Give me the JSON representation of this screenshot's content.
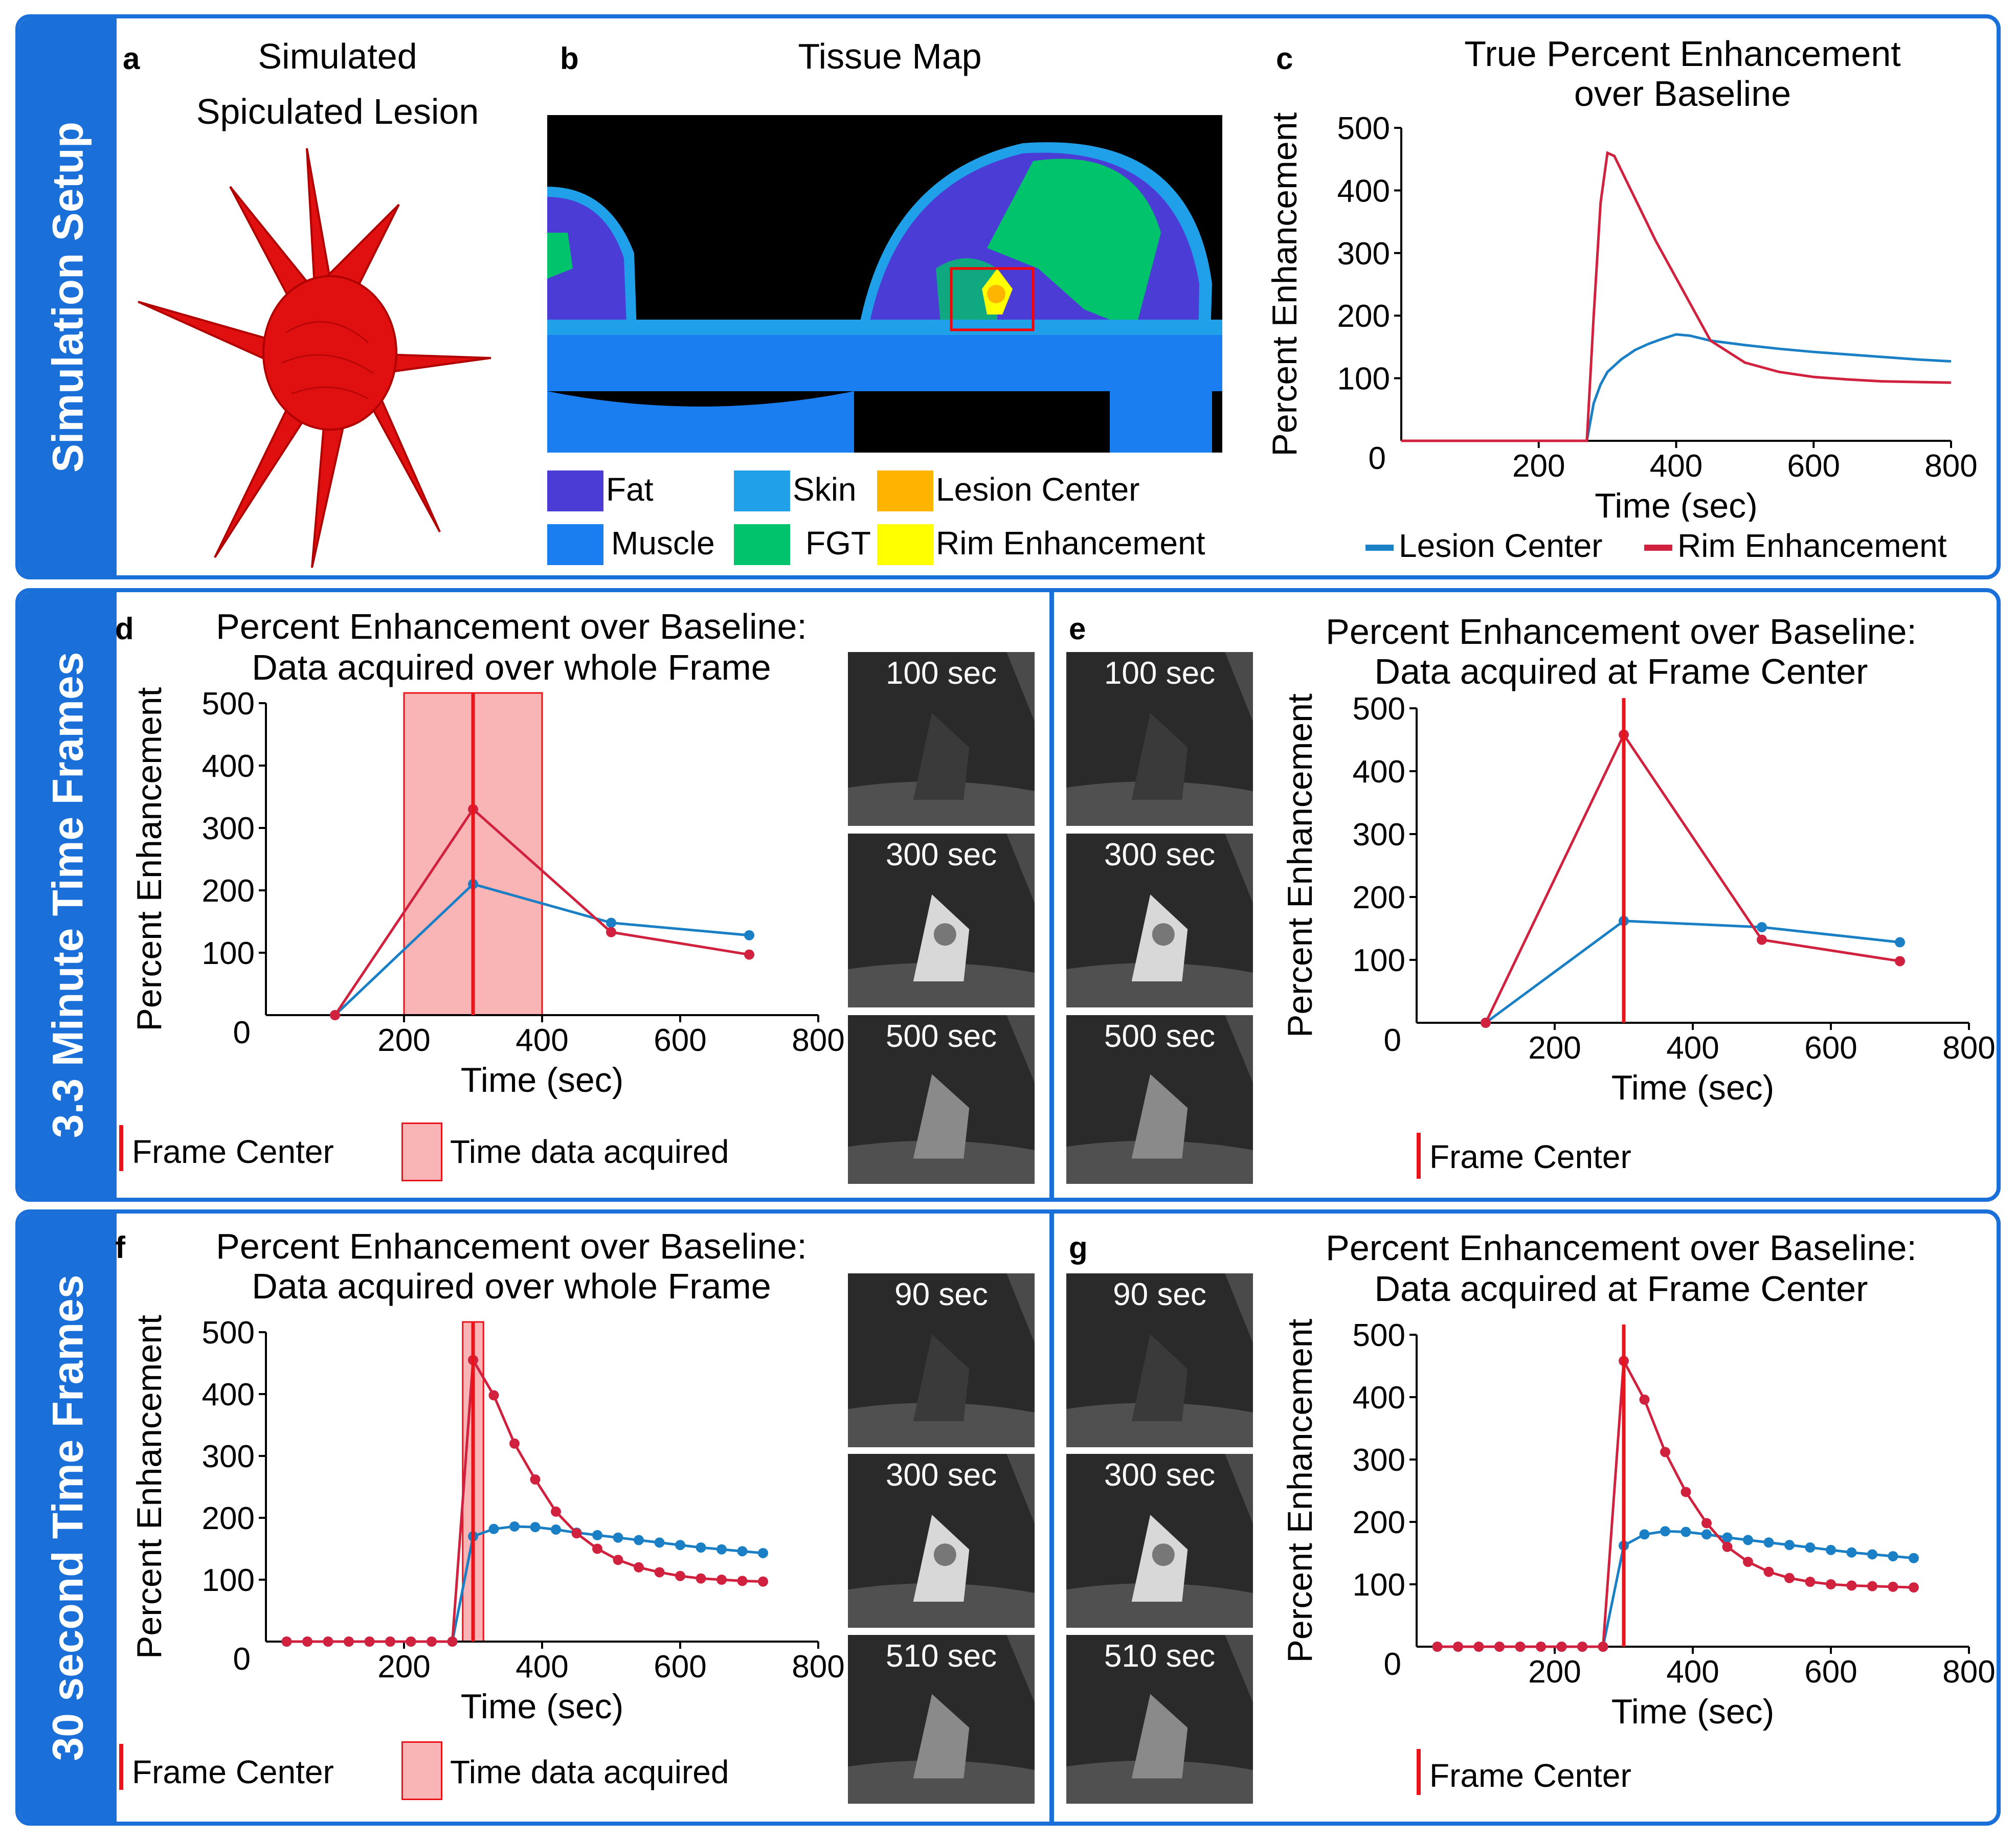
{
  "rows": {
    "setup": "Simulation Setup",
    "three_min": "3.3 Minute Time Frames",
    "thirty_sec": "30 second Time Frames"
  },
  "panel_a": {
    "letter": "a",
    "title_line1": "Simulated",
    "title_line2": "Spiculated Lesion"
  },
  "panel_b": {
    "letter": "b",
    "title": "Tissue Map",
    "legend": [
      {
        "label": "Fat",
        "color": "#4b3cd6"
      },
      {
        "label": "Skin",
        "color": "#1fa0e8"
      },
      {
        "label": "Lesion Center",
        "color": "#ffb400"
      },
      {
        "label": "Muscle",
        "color": "#1a7ef0"
      },
      {
        "label": "FGT",
        "color": "#00c36b"
      },
      {
        "label": "Rim Enhancement",
        "color": "#ffff00"
      }
    ]
  },
  "panel_d": {
    "letter": "d",
    "title_line1": "Percent Enhancement over Baseline:",
    "title_line2": "Data acquired over whole Frame",
    "legend_center": "Frame Center",
    "legend_acquired": "Time data acquired",
    "thumbs": [
      "100 sec",
      "300 sec",
      "500 sec"
    ]
  },
  "panel_e": {
    "letter": "e",
    "title_line1": "Percent Enhancement over Baseline:",
    "title_line2": "Data acquired at Frame Center",
    "legend_center": "Frame Center",
    "thumbs": [
      "100 sec",
      "300 sec",
      "500 sec"
    ]
  },
  "panel_f": {
    "letter": "f",
    "title_line1": "Percent Enhancement over Baseline:",
    "title_line2": "Data acquired over whole Frame",
    "legend_center": "Frame Center",
    "legend_acquired": "Time data acquired",
    "thumbs": [
      "90 sec",
      "300 sec",
      "510 sec"
    ]
  },
  "panel_g": {
    "letter": "g",
    "title_line1": "Percent Enhancement over Baseline:",
    "title_line2": "Data acquired at Frame Center",
    "legend_center": "Frame Center",
    "thumbs": [
      "90 sec",
      "300 sec",
      "510 sec"
    ]
  },
  "colors": {
    "lesion": "#1a7fc4",
    "rim": "#d0223f",
    "frame": "#e8141a",
    "acq": "#f9b4b6",
    "border": "#1a6fd8"
  },
  "chart_data": [
    {
      "id": "c",
      "type": "line",
      "letter": "c",
      "title_line1": "True Percent Enhancement",
      "title_line2": "over Baseline",
      "xlabel": "Time (sec)",
      "ylabel": "Percent Enhancement",
      "xlim": [
        0,
        800
      ],
      "ylim": [
        0,
        500
      ],
      "xticks": [
        200,
        400,
        600,
        800
      ],
      "yticks": [
        100,
        200,
        300,
        400,
        500
      ],
      "origin_label": "0",
      "legend": [
        "Lesion Center",
        "Rim Enhancement"
      ],
      "series": [
        {
          "name": "Lesion Center",
          "x": [
            0,
            270,
            280,
            290,
            300,
            320,
            340,
            360,
            380,
            400,
            420,
            450,
            500,
            550,
            600,
            650,
            700,
            750,
            800
          ],
          "values": [
            0,
            0,
            60,
            90,
            110,
            130,
            145,
            155,
            163,
            170,
            168,
            160,
            153,
            147,
            142,
            138,
            134,
            130,
            127
          ]
        },
        {
          "name": "Rim Enhancement",
          "x": [
            0,
            270,
            280,
            290,
            300,
            310,
            330,
            350,
            370,
            390,
            410,
            430,
            450,
            500,
            550,
            600,
            650,
            700,
            750,
            800
          ],
          "values": [
            0,
            0,
            200,
            380,
            460,
            455,
            410,
            365,
            320,
            280,
            240,
            200,
            160,
            125,
            110,
            102,
            98,
            95,
            94,
            93
          ]
        }
      ]
    },
    {
      "id": "d",
      "type": "line",
      "xlabel": "Time (sec)",
      "ylabel": "Percent Enhancement",
      "xlim": [
        0,
        800
      ],
      "ylim": [
        0,
        500
      ],
      "xticks": [
        200,
        400,
        600,
        800
      ],
      "yticks": [
        100,
        200,
        300,
        400,
        500
      ],
      "origin_label": "0",
      "frame_center": 300,
      "acquired_range": [
        200,
        400
      ],
      "series": [
        {
          "name": "Lesion Center",
          "x": [
            100,
            300,
            500,
            700
          ],
          "values": [
            0,
            210,
            148,
            128
          ]
        },
        {
          "name": "Rim Enhancement",
          "x": [
            100,
            300,
            500,
            700
          ],
          "values": [
            0,
            330,
            133,
            97
          ]
        }
      ]
    },
    {
      "id": "e",
      "type": "line",
      "xlabel": "Time (sec)",
      "ylabel": "Percent Enhancement",
      "xlim": [
        0,
        800
      ],
      "ylim": [
        0,
        500
      ],
      "xticks": [
        200,
        400,
        600,
        800
      ],
      "yticks": [
        100,
        200,
        300,
        400,
        500
      ],
      "origin_label": "0",
      "frame_center": 300,
      "series": [
        {
          "name": "Lesion Center",
          "x": [
            100,
            300,
            500,
            700
          ],
          "values": [
            0,
            162,
            152,
            128
          ]
        },
        {
          "name": "Rim Enhancement",
          "x": [
            100,
            300,
            500,
            700
          ],
          "values": [
            0,
            458,
            132,
            98
          ]
        }
      ]
    },
    {
      "id": "f",
      "type": "line",
      "xlabel": "Time (sec)",
      "ylabel": "Percent Enhancement",
      "xlim": [
        0,
        800
      ],
      "ylim": [
        0,
        500
      ],
      "xticks": [
        200,
        400,
        600,
        800
      ],
      "yticks": [
        100,
        200,
        300,
        400,
        500
      ],
      "origin_label": "0",
      "frame_center": 300,
      "acquired_range": [
        285,
        315
      ],
      "series": [
        {
          "name": "Lesion Center",
          "x": [
            30,
            60,
            90,
            120,
            150,
            180,
            210,
            240,
            270,
            300,
            330,
            360,
            390,
            420,
            450,
            480,
            510,
            540,
            570,
            600,
            630,
            660,
            690,
            720
          ],
          "values": [
            0,
            0,
            0,
            0,
            0,
            0,
            0,
            0,
            0,
            170,
            182,
            186,
            185,
            181,
            176,
            172,
            168,
            164,
            160,
            156,
            152,
            149,
            146,
            143
          ]
        },
        {
          "name": "Rim Enhancement",
          "x": [
            30,
            60,
            90,
            120,
            150,
            180,
            210,
            240,
            270,
            300,
            330,
            360,
            390,
            420,
            450,
            480,
            510,
            540,
            570,
            600,
            630,
            660,
            690,
            720
          ],
          "values": [
            0,
            0,
            0,
            0,
            0,
            0,
            0,
            0,
            0,
            455,
            398,
            320,
            262,
            210,
            175,
            150,
            132,
            120,
            112,
            106,
            102,
            100,
            98,
            97
          ]
        }
      ]
    },
    {
      "id": "g",
      "type": "line",
      "xlabel": "Time (sec)",
      "ylabel": "Percent Enhancement",
      "xlim": [
        0,
        800
      ],
      "ylim": [
        0,
        500
      ],
      "xticks": [
        200,
        400,
        600,
        800
      ],
      "yticks": [
        100,
        200,
        300,
        400,
        500
      ],
      "origin_label": "0",
      "frame_center": 300,
      "series": [
        {
          "name": "Lesion Center",
          "x": [
            30,
            60,
            90,
            120,
            150,
            180,
            210,
            240,
            270,
            300,
            330,
            360,
            390,
            420,
            450,
            480,
            510,
            540,
            570,
            600,
            630,
            660,
            690,
            720
          ],
          "values": [
            0,
            0,
            0,
            0,
            0,
            0,
            0,
            0,
            0,
            162,
            180,
            185,
            184,
            180,
            175,
            171,
            167,
            163,
            159,
            155,
            151,
            148,
            145,
            142
          ]
        },
        {
          "name": "Rim Enhancement",
          "x": [
            30,
            60,
            90,
            120,
            150,
            180,
            210,
            240,
            270,
            300,
            330,
            360,
            390,
            420,
            450,
            480,
            510,
            540,
            570,
            600,
            630,
            660,
            690,
            720
          ],
          "values": [
            0,
            0,
            0,
            0,
            0,
            0,
            0,
            0,
            0,
            458,
            396,
            312,
            248,
            198,
            160,
            136,
            120,
            110,
            104,
            100,
            98,
            97,
            96,
            95
          ]
        }
      ]
    }
  ]
}
